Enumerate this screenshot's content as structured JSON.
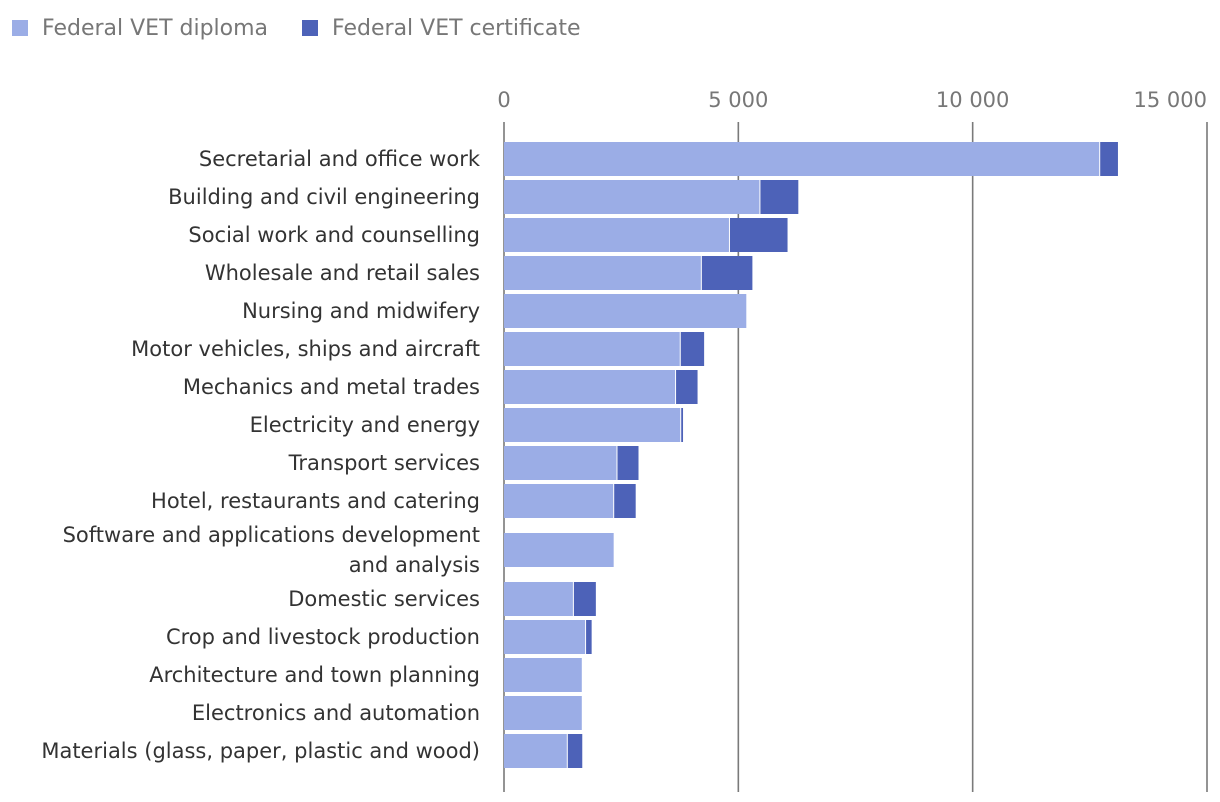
{
  "legend": [
    {
      "label": "Federal VET diploma",
      "color": "#9badE6"
    },
    {
      "label": "Federal VET certificate",
      "color": "#4d62b8"
    }
  ],
  "chart_data": {
    "type": "bar",
    "orientation": "horizontal",
    "stacked": true,
    "legend_position": "top-left",
    "grid": true,
    "xlim": [
      0,
      15000
    ],
    "xticks": [
      0,
      5000,
      10000,
      15000
    ],
    "xtick_labels": [
      "0",
      "5 000",
      "10 000",
      "15 000"
    ],
    "categories": [
      [
        "Secretarial and office work"
      ],
      [
        "Building and civil engineering"
      ],
      [
        "Social work and counselling"
      ],
      [
        "Wholesale and retail sales"
      ],
      [
        "Nursing and midwifery"
      ],
      [
        "Motor vehicles, ships and aircraft"
      ],
      [
        "Mechanics and metal trades"
      ],
      [
        "Electricity and energy"
      ],
      [
        "Transport services"
      ],
      [
        "Hotel, restaurants and catering"
      ],
      [
        "Software and applications development",
        "and analysis"
      ],
      [
        "Domestic services"
      ],
      [
        "Crop and livestock production"
      ],
      [
        "Architecture and town planning"
      ],
      [
        "Electronics and automation"
      ],
      [
        "Materials (glass, paper, plastic and wood)"
      ]
    ],
    "series": [
      {
        "name": "Federal VET diploma",
        "color": "#9badE6",
        "values": [
          12700,
          5450,
          4800,
          4200,
          5170,
          3750,
          3650,
          3760,
          2400,
          2330,
          2340,
          1470,
          1730,
          1660,
          1660,
          1340
        ]
      },
      {
        "name": "Federal VET certificate",
        "color": "#4d62b8",
        "values": [
          400,
          830,
          1250,
          1100,
          0,
          520,
          480,
          60,
          470,
          480,
          0,
          490,
          140,
          0,
          0,
          330
        ]
      }
    ]
  }
}
